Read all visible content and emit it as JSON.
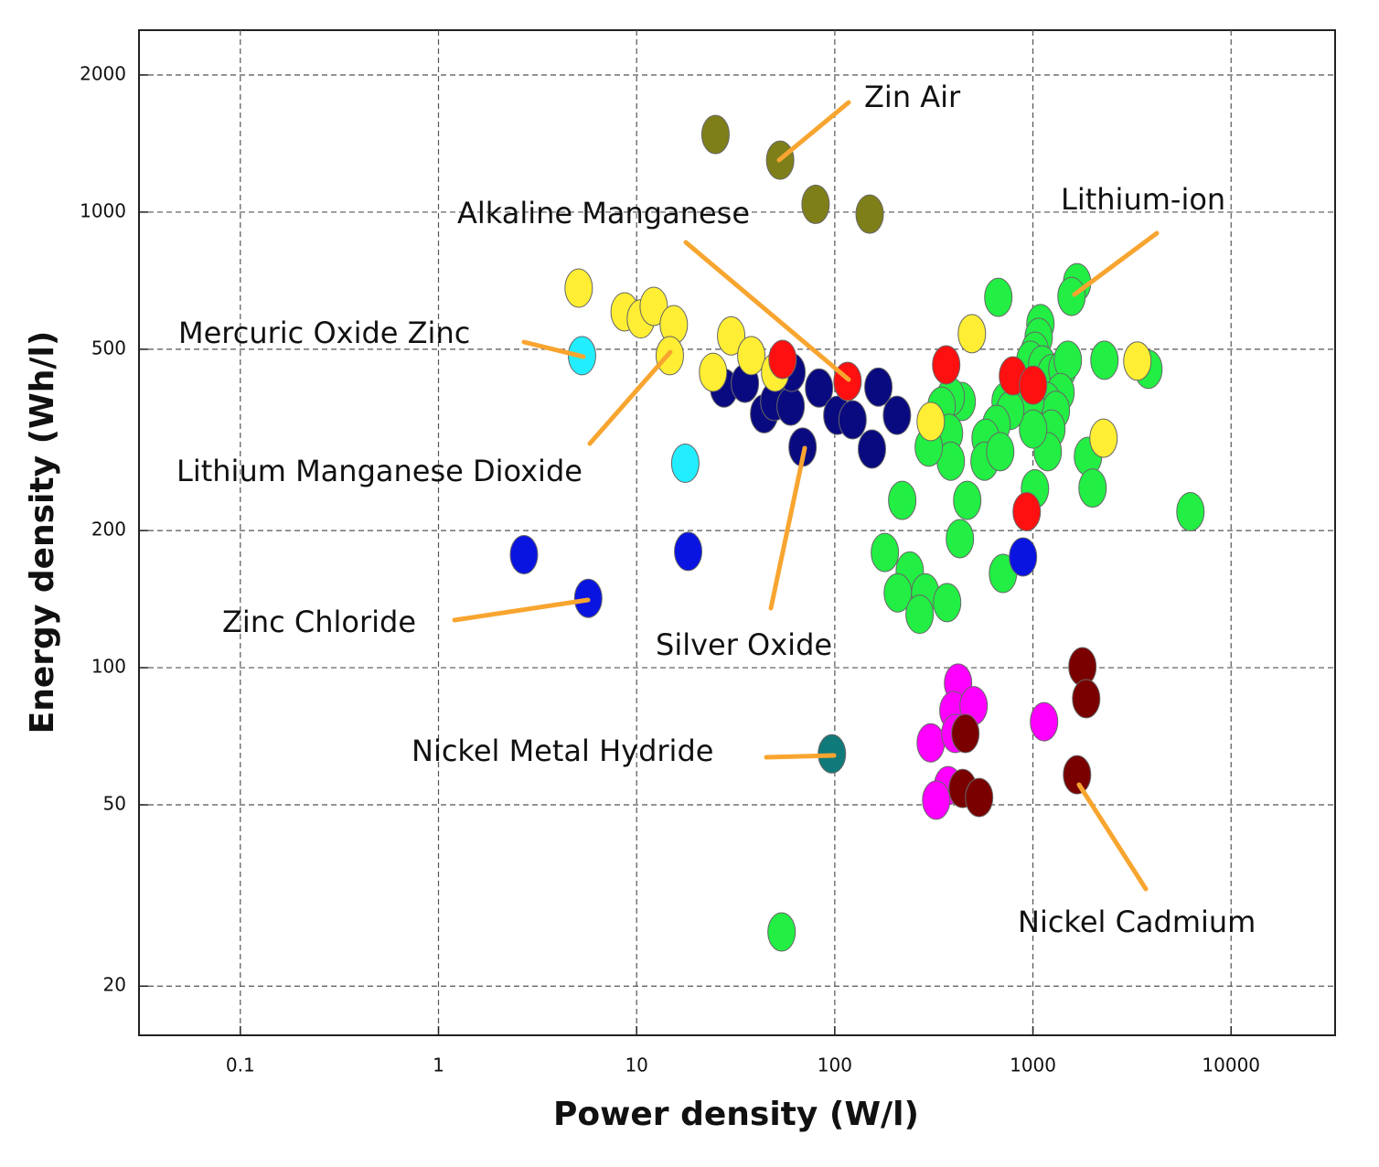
{
  "chart_data": {
    "type": "scatter",
    "x_label": "Power density (W/l)",
    "y_label": "Energy density (Wh/l)",
    "xscale": "log",
    "yscale": "log",
    "grid": true,
    "xlim": [
      0.0308,
      33500
    ],
    "ylim": [
      15.6,
      2508
    ],
    "xticks": [
      0.1,
      1,
      10,
      100,
      1000,
      10000
    ],
    "yticks": [
      20,
      50,
      100,
      200,
      500,
      1000,
      2000
    ],
    "series": [
      {
        "name": "Lithium-ion",
        "color": "#22ee44",
        "x": [
          669,
          1670,
          1566,
          1091,
          1069,
          1024,
          971,
          1114,
          1239,
          1408,
          1500,
          1378,
          1175,
          1306,
          1239,
          1188,
          971,
          1002,
          728,
          768,
          655,
          577,
          570,
          684,
          437,
          385,
          346,
          377,
          385,
          298,
          466,
          428,
          219,
          179,
          239,
          208,
          286,
          268,
          369,
          706,
          2296,
          3828,
          1896,
          2000,
          6237,
          1024,
          53.9
        ],
        "values": [
          650,
          700,
          653,
          569,
          531,
          495,
          473,
          462,
          442,
          452,
          473,
          402,
          384,
          367,
          334,
          298,
          384,
          334,
          384,
          367,
          342,
          319,
          284,
          298,
          384,
          393,
          375,
          327,
          284,
          305,
          233,
          192,
          233,
          179,
          163,
          146,
          146,
          131,
          139,
          161,
          473,
          452,
          291,
          248,
          220,
          247,
          26.3
        ]
      },
      {
        "color": "#ff00ff",
        "x": [
          419,
          397,
          502,
          305,
          406,
          1138,
          373,
          325
        ],
        "values": [
          92.5,
          80.5,
          82.5,
          68.4,
          71.7,
          76.1,
          55.1,
          51.2
        ]
      },
      {
        "name": "Nickel Cadmium",
        "color": "#7a0000",
        "x": [
          1778,
          1857,
          1670,
          456,
          442,
          535
        ],
        "values": [
          100.5,
          85.5,
          58.2,
          71.7,
          54.3,
          51.9
        ]
      },
      {
        "name": "Nickel Metal Hydride",
        "color": "#107a7a",
        "x": [
          96.7
        ],
        "values": [
          64.7
        ]
      },
      {
        "name": "Zinc Chloride",
        "color": "#0a14e0",
        "x": [
          2.7,
          5.7,
          18.2,
          891
        ],
        "values": [
          177,
          142,
          180,
          175
        ]
      },
      {
        "name": "Silver Oxide",
        "color": "#0a0a80",
        "x": [
          27.6,
          35.2,
          44,
          49.5,
          59.9,
          60.5,
          83.3,
          103,
          123,
          68.8,
          154,
          166,
          206
        ],
        "values": [
          411,
          421,
          361,
          384,
          375,
          445,
          411,
          358,
          350,
          305,
          302,
          413,
          358
        ]
      },
      {
        "name": "Lithium Manganese Dioxide",
        "color": "#ffee33",
        "x": [
          5.1,
          8.7,
          10.5,
          12.2,
          15.4,
          14.7,
          30,
          37.9,
          24.3,
          50,
          492,
          305,
          3365,
          2271
        ],
        "values": [
          681,
          604,
          583,
          621,
          566,
          484,
          535,
          484,
          445,
          445,
          541,
          347,
          471,
          319
        ]
      },
      {
        "name": "Mercuric Oxide Zinc",
        "color": "#22eeff",
        "x": [
          5.3,
          17.6
        ],
        "values": [
          484,
          281
        ]
      },
      {
        "name": "Alkaline Manganese",
        "color": "#ff1010",
        "x": [
          54.5,
          116,
          365,
          793,
          1002,
          930
        ],
        "values": [
          475,
          425,
          462,
          437,
          417,
          220
        ]
      },
      {
        "name": "Zin Air",
        "color": "#7f7f1a",
        "x": [
          25,
          53,
          80,
          150
        ],
        "values": [
          1480,
          1300,
          1040,
          990
        ]
      }
    ]
  }
}
